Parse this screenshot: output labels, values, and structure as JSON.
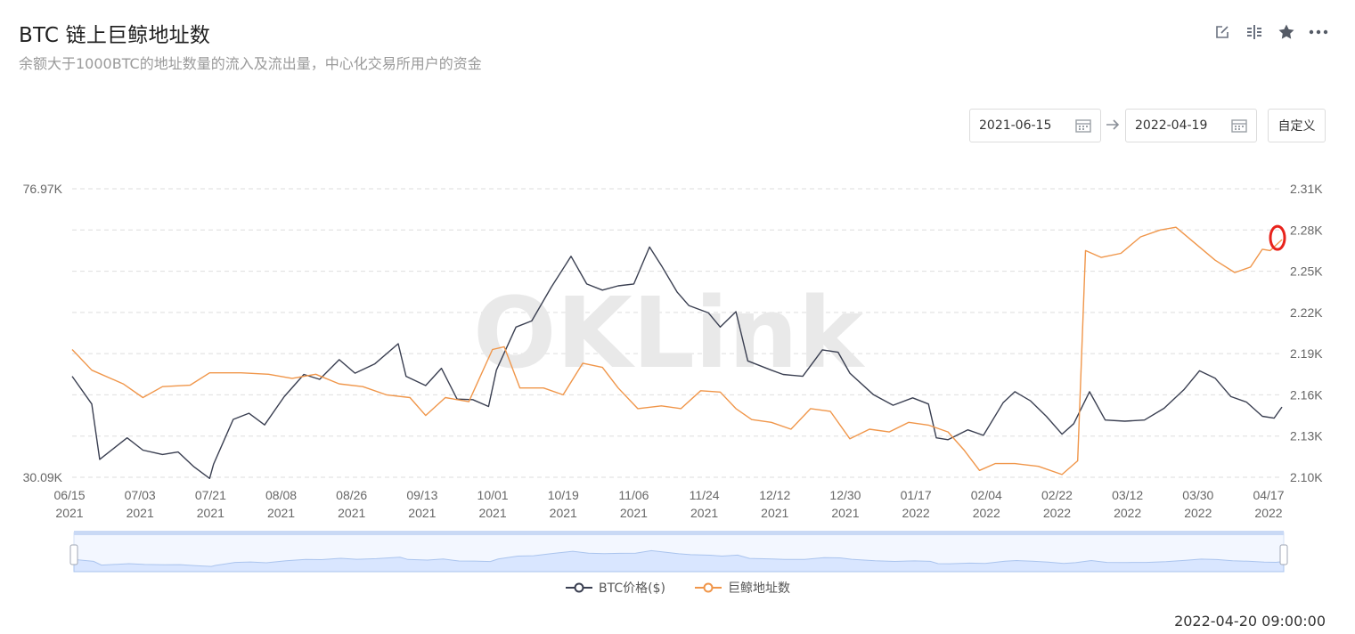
{
  "header": {
    "title": "BTC 链上巨鲸地址数",
    "subtitle": "余额大于1000BTC的地址数量的流入及流出量，中心化交易所用户的资金"
  },
  "toolbar": {
    "icons": [
      "edit-icon",
      "compare-icon",
      "star-icon",
      "more-icon"
    ]
  },
  "date_range": {
    "start": "2021-06-15",
    "end": "2022-04-19",
    "custom_label": "自定义"
  },
  "watermark": "OKLink",
  "timestamp": "2022-04-20 09:00:00",
  "colors": {
    "price": "#3a3f51",
    "whale": "#f0964a",
    "grid": "#dedede",
    "axis_text": "#666666",
    "highlight": "#e8231c",
    "slider": "#d9e6ff"
  },
  "chart_data": {
    "type": "line",
    "x_ticks": [
      {
        "md": "06/15",
        "y": "2021"
      },
      {
        "md": "07/03",
        "y": "2021"
      },
      {
        "md": "07/21",
        "y": "2021"
      },
      {
        "md": "08/08",
        "y": "2021"
      },
      {
        "md": "08/26",
        "y": "2021"
      },
      {
        "md": "09/13",
        "y": "2021"
      },
      {
        "md": "10/01",
        "y": "2021"
      },
      {
        "md": "10/19",
        "y": "2021"
      },
      {
        "md": "11/06",
        "y": "2021"
      },
      {
        "md": "11/24",
        "y": "2021"
      },
      {
        "md": "12/12",
        "y": "2021"
      },
      {
        "md": "12/30",
        "y": "2021"
      },
      {
        "md": "01/17",
        "y": "2022"
      },
      {
        "md": "02/04",
        "y": "2022"
      },
      {
        "md": "02/22",
        "y": "2022"
      },
      {
        "md": "03/12",
        "y": "2022"
      },
      {
        "md": "03/30",
        "y": "2022"
      },
      {
        "md": "04/17",
        "y": "2022"
      }
    ],
    "x_range": [
      "2021-06-15",
      "2022-04-19"
    ],
    "y_left": {
      "ticks": [
        "76.97K",
        "30.09K"
      ],
      "min": 30090,
      "max": 76970
    },
    "y_right": {
      "ticks": [
        "2.31K",
        "2.28K",
        "2.25K",
        "2.22K",
        "2.19K",
        "2.16K",
        "2.13K",
        "2.10K"
      ],
      "min": 2100,
      "max": 2310
    },
    "series": [
      {
        "name": "BTC价格($)",
        "axis": "left",
        "points": [
          [
            "2021-06-15",
            46500
          ],
          [
            "2021-06-20",
            42000
          ],
          [
            "2021-06-22",
            33000
          ],
          [
            "2021-06-26",
            35000
          ],
          [
            "2021-06-29",
            36500
          ],
          [
            "2021-07-03",
            34500
          ],
          [
            "2021-07-08",
            33800
          ],
          [
            "2021-07-12",
            34200
          ],
          [
            "2021-07-16",
            31800
          ],
          [
            "2021-07-20",
            29900
          ],
          [
            "2021-07-21",
            32200
          ],
          [
            "2021-07-26",
            39500
          ],
          [
            "2021-07-30",
            40500
          ],
          [
            "2021-08-03",
            38600
          ],
          [
            "2021-08-08",
            43200
          ],
          [
            "2021-08-13",
            46800
          ],
          [
            "2021-08-17",
            46000
          ],
          [
            "2021-08-22",
            49200
          ],
          [
            "2021-08-26",
            47000
          ],
          [
            "2021-08-31",
            48500
          ],
          [
            "2021-09-06",
            51800
          ],
          [
            "2021-09-08",
            46500
          ],
          [
            "2021-09-13",
            45000
          ],
          [
            "2021-09-17",
            47800
          ],
          [
            "2021-09-21",
            42800
          ],
          [
            "2021-09-25",
            42700
          ],
          [
            "2021-09-29",
            41600
          ],
          [
            "2021-10-01",
            47500
          ],
          [
            "2021-10-06",
            54500
          ],
          [
            "2021-10-10",
            55500
          ],
          [
            "2021-10-15",
            61000
          ],
          [
            "2021-10-20",
            66000
          ],
          [
            "2021-10-24",
            61500
          ],
          [
            "2021-10-28",
            60500
          ],
          [
            "2021-11-01",
            61200
          ],
          [
            "2021-11-05",
            61500
          ],
          [
            "2021-11-09",
            67500
          ],
          [
            "2021-11-12",
            64500
          ],
          [
            "2021-11-16",
            60200
          ],
          [
            "2021-11-19",
            58000
          ],
          [
            "2021-11-24",
            56800
          ],
          [
            "2021-11-27",
            54500
          ],
          [
            "2021-12-01",
            57000
          ],
          [
            "2021-12-04",
            49000
          ],
          [
            "2021-12-10",
            47500
          ],
          [
            "2021-12-13",
            46800
          ],
          [
            "2021-12-18",
            46500
          ],
          [
            "2021-12-23",
            50800
          ],
          [
            "2021-12-27",
            50400
          ],
          [
            "2021-12-30",
            47000
          ],
          [
            "2022-01-05",
            43500
          ],
          [
            "2022-01-10",
            41800
          ],
          [
            "2022-01-15",
            43000
          ],
          [
            "2022-01-19",
            42000
          ],
          [
            "2022-01-21",
            36500
          ],
          [
            "2022-01-24",
            36200
          ],
          [
            "2022-01-29",
            37800
          ],
          [
            "2022-02-02",
            36900
          ],
          [
            "2022-02-07",
            42200
          ],
          [
            "2022-02-10",
            44000
          ],
          [
            "2022-02-14",
            42500
          ],
          [
            "2022-02-18",
            40000
          ],
          [
            "2022-02-22",
            37100
          ],
          [
            "2022-02-25",
            38800
          ],
          [
            "2022-03-01",
            44000
          ],
          [
            "2022-03-05",
            39400
          ],
          [
            "2022-03-10",
            39200
          ],
          [
            "2022-03-15",
            39400
          ],
          [
            "2022-03-20",
            41300
          ],
          [
            "2022-03-25",
            44300
          ],
          [
            "2022-03-29",
            47400
          ],
          [
            "2022-04-02",
            46200
          ],
          [
            "2022-04-06",
            43200
          ],
          [
            "2022-04-10",
            42300
          ],
          [
            "2022-04-14",
            40000
          ],
          [
            "2022-04-17",
            39700
          ],
          [
            "2022-04-19",
            41500
          ]
        ]
      },
      {
        "name": "巨鲸地址数",
        "axis": "right",
        "points": [
          [
            "2021-06-15",
            2193
          ],
          [
            "2021-06-20",
            2178
          ],
          [
            "2021-06-28",
            2168
          ],
          [
            "2021-07-03",
            2158
          ],
          [
            "2021-07-08",
            2166
          ],
          [
            "2021-07-15",
            2167
          ],
          [
            "2021-07-20",
            2176
          ],
          [
            "2021-07-28",
            2176
          ],
          [
            "2021-08-04",
            2175
          ],
          [
            "2021-08-10",
            2172
          ],
          [
            "2021-08-16",
            2175
          ],
          [
            "2021-08-22",
            2168
          ],
          [
            "2021-08-28",
            2166
          ],
          [
            "2021-09-03",
            2160
          ],
          [
            "2021-09-09",
            2158
          ],
          [
            "2021-09-13",
            2145
          ],
          [
            "2021-09-18",
            2158
          ],
          [
            "2021-09-24",
            2155
          ],
          [
            "2021-09-30",
            2193
          ],
          [
            "2021-10-03",
            2195
          ],
          [
            "2021-10-07",
            2165
          ],
          [
            "2021-10-13",
            2165
          ],
          [
            "2021-10-18",
            2160
          ],
          [
            "2021-10-23",
            2183
          ],
          [
            "2021-10-28",
            2180
          ],
          [
            "2021-11-01",
            2165
          ],
          [
            "2021-11-06",
            2150
          ],
          [
            "2021-11-12",
            2152
          ],
          [
            "2021-11-17",
            2150
          ],
          [
            "2021-11-22",
            2163
          ],
          [
            "2021-11-27",
            2162
          ],
          [
            "2021-12-01",
            2150
          ],
          [
            "2021-12-05",
            2142
          ],
          [
            "2021-12-10",
            2140
          ],
          [
            "2021-12-15",
            2135
          ],
          [
            "2021-12-20",
            2150
          ],
          [
            "2021-12-25",
            2148
          ],
          [
            "2021-12-30",
            2128
          ],
          [
            "2022-01-04",
            2135
          ],
          [
            "2022-01-09",
            2133
          ],
          [
            "2022-01-14",
            2140
          ],
          [
            "2022-01-19",
            2138
          ],
          [
            "2022-01-24",
            2133
          ],
          [
            "2022-01-28",
            2120
          ],
          [
            "2022-02-01",
            2105
          ],
          [
            "2022-02-05",
            2110
          ],
          [
            "2022-02-10",
            2110
          ],
          [
            "2022-02-16",
            2108
          ],
          [
            "2022-02-22",
            2102
          ],
          [
            "2022-02-26",
            2112
          ],
          [
            "2022-02-28",
            2265
          ],
          [
            "2022-03-04",
            2260
          ],
          [
            "2022-03-09",
            2263
          ],
          [
            "2022-03-14",
            2275
          ],
          [
            "2022-03-19",
            2280
          ],
          [
            "2022-03-23",
            2282
          ],
          [
            "2022-03-28",
            2270
          ],
          [
            "2022-04-02",
            2258
          ],
          [
            "2022-04-07",
            2249
          ],
          [
            "2022-04-11",
            2253
          ],
          [
            "2022-04-14",
            2266
          ],
          [
            "2022-04-16",
            2265
          ],
          [
            "2022-04-19",
            2273
          ]
        ]
      }
    ],
    "highlight_date": "2022-04-19",
    "grid": true,
    "legend_position": "bottom-center"
  }
}
